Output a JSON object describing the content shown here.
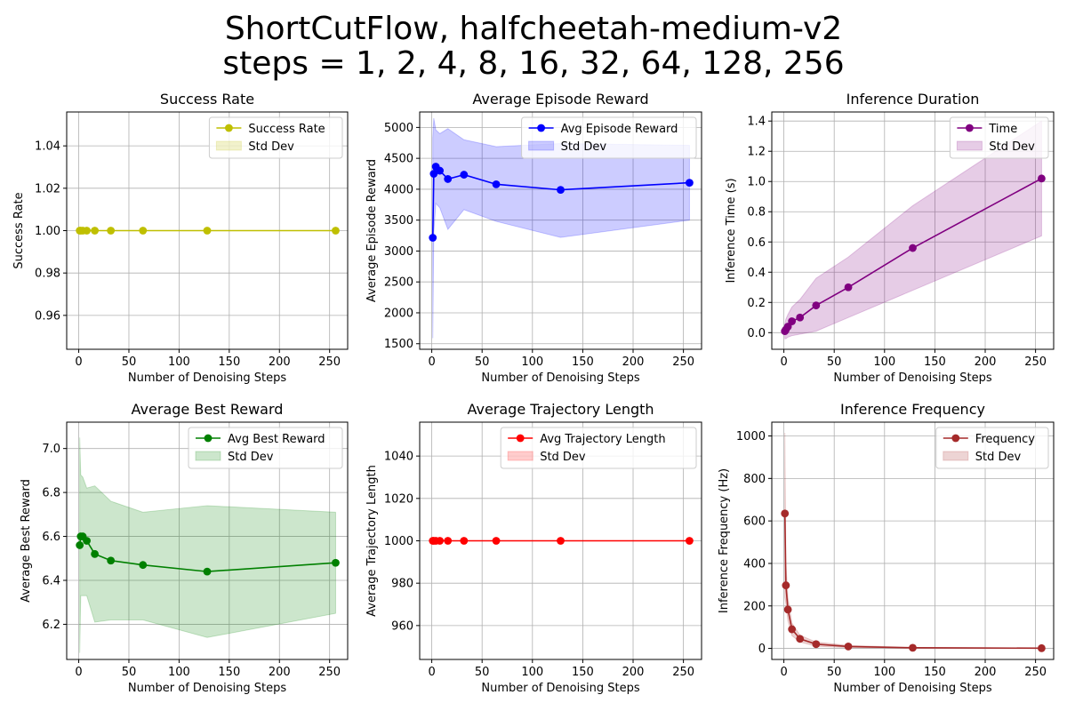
{
  "figure": {
    "suptitle_lines": [
      "ShortCutFlow, halfcheetah-medium-v2",
      "steps = 1, 2, 4, 8, 16, 32, 64, 128, 256"
    ]
  },
  "chart_data": [
    {
      "type": "line",
      "title": "Success Rate",
      "xlabel": "Number of Denoising Steps",
      "ylabel": "Success Rate",
      "xlim": [
        -12,
        268
      ],
      "ylim": [
        0.944,
        1.056
      ],
      "xticks": [
        0,
        50,
        100,
        150,
        200,
        250
      ],
      "yticks": [
        0.96,
        0.98,
        1.0,
        1.02,
        1.04
      ],
      "ytick_labels": [
        "0.96",
        "0.98",
        "1.00",
        "1.02",
        "1.04"
      ],
      "color": "#bfbf00",
      "band_alpha": 0.2,
      "legend_position": "upper right",
      "series": [
        {
          "name": "Success Rate",
          "x": [
            1,
            2,
            4,
            8,
            16,
            32,
            64,
            128,
            256
          ],
          "y": [
            1,
            1,
            1,
            1,
            1,
            1,
            1,
            1,
            1
          ],
          "std_lower": [
            1,
            1,
            1,
            1,
            1,
            1,
            1,
            1,
            1
          ],
          "std_upper": [
            1,
            1,
            1,
            1,
            1,
            1,
            1,
            1,
            1
          ],
          "band_label": "Std Dev"
        }
      ]
    },
    {
      "type": "line",
      "title": "Average Episode Reward",
      "xlabel": "Number of Denoising Steps",
      "ylabel": "Average Episode Reward",
      "xlim": [
        -12,
        268
      ],
      "ylim": [
        1410,
        5250
      ],
      "xticks": [
        0,
        50,
        100,
        150,
        200,
        250
      ],
      "yticks": [
        1500,
        2000,
        2500,
        3000,
        3500,
        4000,
        4500,
        5000
      ],
      "ytick_labels": [
        "1500",
        "2000",
        "2500",
        "3000",
        "3500",
        "4000",
        "4500",
        "5000"
      ],
      "color": "#0000ff",
      "band_alpha": 0.2,
      "legend_position": "upper right",
      "series": [
        {
          "name": "Avg Episode Reward",
          "x": [
            1,
            2,
            4,
            8,
            16,
            32,
            64,
            128,
            256
          ],
          "y": [
            3215,
            4250,
            4365,
            4300,
            4165,
            4235,
            4080,
            3990,
            4105
          ],
          "std_lower": [
            1590,
            3300,
            3770,
            3700,
            3350,
            3670,
            3480,
            3220,
            3500
          ],
          "std_upper": [
            4830,
            5150,
            4960,
            4900,
            4980,
            4800,
            4690,
            4740,
            4710
          ],
          "band_label": "Std Dev"
        }
      ]
    },
    {
      "type": "line",
      "title": "Inference Duration",
      "xlabel": "Number of Denoising Steps",
      "ylabel": "Inference Time (s)",
      "xlim": [
        -12,
        268
      ],
      "ylim": [
        -0.11,
        1.46
      ],
      "xticks": [
        0,
        50,
        100,
        150,
        200,
        250
      ],
      "yticks": [
        0.0,
        0.2,
        0.4,
        0.6,
        0.8,
        1.0,
        1.2,
        1.4
      ],
      "ytick_labels": [
        "0.0",
        "0.2",
        "0.4",
        "0.6",
        "0.8",
        "1.0",
        "1.2",
        "1.4"
      ],
      "color": "#800080",
      "band_alpha": 0.2,
      "legend_position": "upper right",
      "series": [
        {
          "name": "Time",
          "x": [
            1,
            2,
            4,
            8,
            16,
            32,
            64,
            128,
            256
          ],
          "y": [
            0.01,
            0.02,
            0.04,
            0.075,
            0.1,
            0.18,
            0.3,
            0.56,
            1.02
          ],
          "std_lower": [
            -0.04,
            -0.04,
            -0.03,
            -0.02,
            -0.01,
            0.01,
            0.1,
            0.28,
            0.64
          ],
          "std_upper": [
            0.06,
            0.09,
            0.12,
            0.17,
            0.22,
            0.36,
            0.5,
            0.84,
            1.4
          ],
          "band_label": "Std Dev"
        }
      ]
    },
    {
      "type": "line",
      "title": "Average Best Reward",
      "xlabel": "Number of Denoising Steps",
      "ylabel": "Average Best Reward",
      "xlim": [
        -12,
        268
      ],
      "ylim": [
        6.04,
        7.12
      ],
      "xticks": [
        0,
        50,
        100,
        150,
        200,
        250
      ],
      "yticks": [
        6.2,
        6.4,
        6.6,
        6.8,
        7.0
      ],
      "ytick_labels": [
        "6.2",
        "6.4",
        "6.6",
        "6.8",
        "7.0"
      ],
      "color": "#008000",
      "band_alpha": 0.2,
      "legend_position": "upper right",
      "series": [
        {
          "name": "Avg Best Reward",
          "x": [
            1,
            2,
            4,
            8,
            16,
            32,
            64,
            128,
            256
          ],
          "y": [
            6.56,
            6.6,
            6.6,
            6.58,
            6.52,
            6.49,
            6.47,
            6.44,
            6.48
          ],
          "std_lower": [
            6.07,
            6.33,
            6.33,
            6.33,
            6.21,
            6.22,
            6.22,
            6.14,
            6.25
          ],
          "std_upper": [
            7.05,
            6.88,
            6.87,
            6.82,
            6.83,
            6.76,
            6.71,
            6.74,
            6.71
          ],
          "band_label": "Std Dev"
        }
      ]
    },
    {
      "type": "line",
      "title": "Average Trajectory Length",
      "xlabel": "Number of Denoising Steps",
      "ylabel": "Average Trajectory Length",
      "xlim": [
        -12,
        268
      ],
      "ylim": [
        944,
        1056
      ],
      "xticks": [
        0,
        50,
        100,
        150,
        200,
        250
      ],
      "yticks": [
        960,
        980,
        1000,
        1020,
        1040
      ],
      "ytick_labels": [
        "960",
        "980",
        "1000",
        "1020",
        "1040"
      ],
      "color": "#ff0000",
      "band_alpha": 0.2,
      "legend_position": "upper right",
      "series": [
        {
          "name": "Avg Trajectory Length",
          "x": [
            1,
            2,
            4,
            8,
            16,
            32,
            64,
            128,
            256
          ],
          "y": [
            1000,
            1000,
            1000,
            1000,
            1000,
            1000,
            1000,
            1000,
            1000
          ],
          "std_lower": [
            1000,
            1000,
            1000,
            1000,
            1000,
            1000,
            1000,
            1000,
            1000
          ],
          "std_upper": [
            1000,
            1000,
            1000,
            1000,
            1000,
            1000,
            1000,
            1000,
            1000
          ],
          "band_label": "Std Dev"
        }
      ]
    },
    {
      "type": "line",
      "title": "Inference Frequency",
      "xlabel": "Number of Denoising Steps",
      "ylabel": "Inference Frequency (Hz)",
      "xlim": [
        -12,
        268
      ],
      "ylim": [
        -52,
        1065
      ],
      "xticks": [
        0,
        50,
        100,
        150,
        200,
        250
      ],
      "yticks": [
        0,
        200,
        400,
        600,
        800,
        1000
      ],
      "ytick_labels": [
        "0",
        "200",
        "400",
        "600",
        "800",
        "1000"
      ],
      "color": "#a52a2a",
      "band_alpha": 0.2,
      "legend_position": "upper right",
      "series": [
        {
          "name": "Frequency",
          "x": [
            1,
            2,
            4,
            8,
            16,
            32,
            64,
            128,
            256
          ],
          "y": [
            635,
            297,
            183,
            90,
            45,
            20,
            9,
            3,
            1
          ],
          "std_lower": [
            240,
            210,
            130,
            60,
            30,
            10,
            4,
            1,
            0
          ],
          "std_upper": [
            1015,
            400,
            240,
            120,
            62,
            30,
            14,
            5,
            2
          ],
          "band_label": "Std Dev"
        }
      ]
    }
  ]
}
